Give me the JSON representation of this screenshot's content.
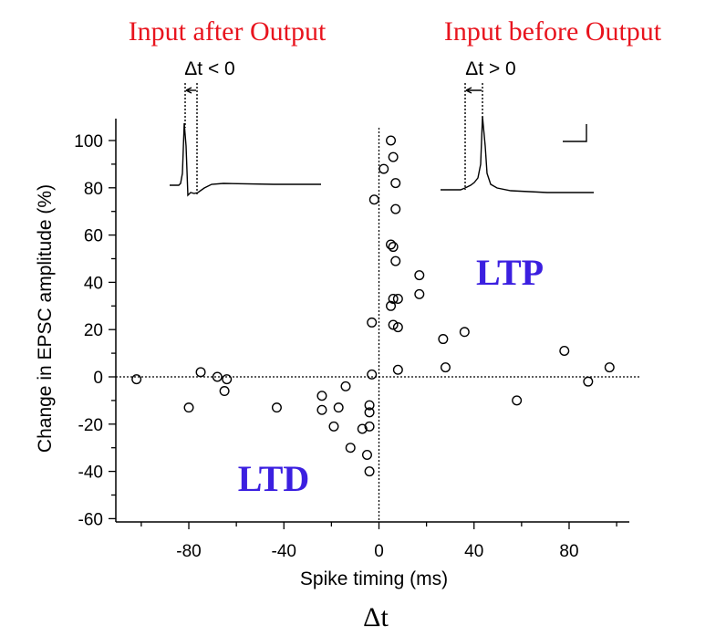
{
  "header": {
    "left_title": "Input after Output",
    "right_title": "Input before Output",
    "title_color": "#e8141e"
  },
  "insets": {
    "left_label": "Δt < 0",
    "right_label": "Δt > 0"
  },
  "regions": {
    "ltp_label": "LTP",
    "ltd_label": "LTD",
    "label_color": "#3b1fe0"
  },
  "footer": {
    "delta_label": "Δt"
  },
  "chart_data": {
    "type": "scatter",
    "xlabel": "Spike timing (ms)",
    "ylabel": "Change in EPSC amplitude (%)",
    "xlim": [
      -105,
      105
    ],
    "ylim": [
      -60,
      110
    ],
    "xticks": [
      -80,
      -40,
      0,
      40,
      80
    ],
    "yticks": [
      -60,
      -40,
      -20,
      0,
      20,
      40,
      60,
      80,
      100
    ],
    "xtick_labels": [
      "-80",
      "-40",
      "0",
      "40",
      "80"
    ],
    "ytick_labels": [
      "-60",
      "-40",
      "-20",
      "0",
      "20",
      "40",
      "60",
      "80",
      "100"
    ],
    "grid": false,
    "reference_lines": {
      "x": 0,
      "y": 0,
      "style": "dotted"
    },
    "points": [
      [
        -102,
        -1
      ],
      [
        -80,
        -13
      ],
      [
        -75,
        2
      ],
      [
        -68,
        0
      ],
      [
        -65,
        -6
      ],
      [
        -64,
        -1
      ],
      [
        -43,
        -13
      ],
      [
        -24,
        -8
      ],
      [
        -24,
        -14
      ],
      [
        -19,
        -21
      ],
      [
        -17,
        -13
      ],
      [
        -14,
        -4
      ],
      [
        -12,
        -30
      ],
      [
        -7,
        -22
      ],
      [
        -5,
        -33
      ],
      [
        -4,
        -21
      ],
      [
        -4,
        -12
      ],
      [
        -4,
        -15
      ],
      [
        -4,
        -40
      ],
      [
        -3,
        1
      ],
      [
        -3,
        23
      ],
      [
        -2,
        75
      ],
      [
        2,
        88
      ],
      [
        5,
        100
      ],
      [
        5,
        30
      ],
      [
        5,
        56
      ],
      [
        6,
        22
      ],
      [
        6,
        55
      ],
      [
        6,
        93
      ],
      [
        6,
        33
      ],
      [
        7,
        49
      ],
      [
        7,
        82
      ],
      [
        7,
        71
      ],
      [
        8,
        33
      ],
      [
        8,
        21
      ],
      [
        8,
        3
      ],
      [
        17,
        43
      ],
      [
        17,
        35
      ],
      [
        27,
        16
      ],
      [
        28,
        4
      ],
      [
        36,
        19
      ],
      [
        58,
        -10
      ],
      [
        78,
        11
      ],
      [
        88,
        -2
      ],
      [
        97,
        4
      ]
    ]
  }
}
